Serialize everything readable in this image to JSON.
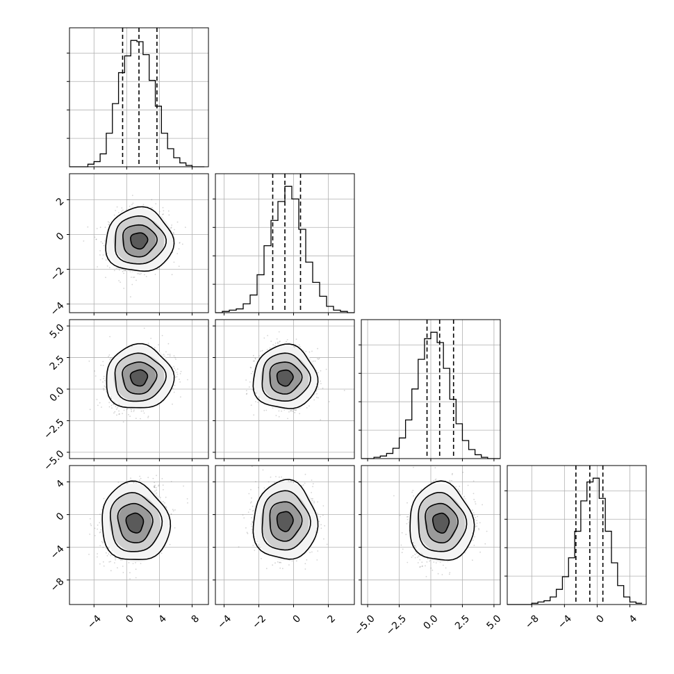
{
  "chart_data": {
    "type": "corner",
    "n_params": 4,
    "params": [
      {
        "range": [
          -7,
          10
        ],
        "ticks": [
          -4,
          0,
          4,
          8
        ],
        "tick_labels": [
          "−4",
          "0",
          "4",
          "8"
        ],
        "quantiles": [
          -0.5,
          1.5,
          3.7
        ],
        "hist": {
          "edges": [
            -7,
            -6.25,
            -5.5,
            -4.75,
            -4,
            -3.25,
            -2.5,
            -1.75,
            -1,
            -0.25,
            0.5,
            1.25,
            2,
            2.75,
            3.5,
            4.25,
            5,
            5.75,
            6.5,
            7.25,
            8,
            8.75,
            9.5
          ],
          "counts": [
            0,
            0,
            0,
            2,
            4,
            10,
            26,
            49,
            73,
            86,
            98,
            97,
            87,
            67,
            47,
            26,
            14,
            7,
            3,
            1,
            0,
            0
          ]
        }
      },
      {
        "range": [
          -4.5,
          3.5
        ],
        "ticks": [
          -4,
          -2,
          0,
          2
        ],
        "tick_labels": [
          "−4",
          "−2",
          "0",
          "2"
        ],
        "quantiles": [
          -1.2,
          -0.5,
          0.4
        ],
        "hist": {
          "edges": [
            -4.5,
            -4.1,
            -3.7,
            -3.3,
            -2.9,
            -2.5,
            -2.1,
            -1.7,
            -1.3,
            -0.9,
            -0.5,
            -0.1,
            0.3,
            0.7,
            1.1,
            1.5,
            1.9,
            2.3,
            2.7,
            3.1,
            3.5
          ],
          "counts": [
            0,
            1,
            2,
            3,
            7,
            14,
            30,
            53,
            73,
            88,
            100,
            90,
            66,
            40,
            24,
            13,
            5,
            2,
            1,
            0
          ]
        }
      },
      {
        "range": [
          -5.5,
          5.5
        ],
        "ticks": [
          -5,
          -2.5,
          0,
          2.5,
          5
        ],
        "tick_labels": [
          "−5.0",
          "−2.5",
          "0.0",
          "2.5",
          "5.0"
        ],
        "quantiles": [
          -0.3,
          0.7,
          1.8
        ],
        "hist": {
          "edges": [
            -5.5,
            -5,
            -4.5,
            -4,
            -3.5,
            -3,
            -2.5,
            -2,
            -1.5,
            -1,
            -0.5,
            0,
            0.5,
            1,
            1.5,
            2,
            2.5,
            3,
            3.5,
            4,
            4.5,
            5,
            5.5
          ],
          "counts": [
            0,
            0,
            1,
            2,
            4,
            8,
            16,
            30,
            54,
            77,
            93,
            98,
            90,
            70,
            46,
            27,
            14,
            7,
            3,
            1,
            0,
            0
          ]
        }
      },
      {
        "range": [
          -11,
          6
        ],
        "ticks": [
          -8,
          -4,
          0,
          4
        ],
        "tick_labels": [
          "−8",
          "−4",
          "0",
          "4"
        ],
        "quantiles": [
          -2.6,
          -0.9,
          0.7
        ],
        "hist": {
          "edges": [
            -11,
            -10.25,
            -9.5,
            -8.75,
            -8,
            -7.25,
            -6.5,
            -5.75,
            -5,
            -4.25,
            -3.5,
            -2.75,
            -2,
            -1.25,
            -0.5,
            0.25,
            1,
            1.75,
            2.5,
            3.25,
            4,
            4.75,
            5.5
          ],
          "counts": [
            0,
            0,
            0,
            0,
            1,
            2,
            3,
            6,
            12,
            22,
            37,
            58,
            82,
            97,
            100,
            84,
            58,
            33,
            15,
            6,
            2,
            1
          ]
        }
      }
    ],
    "pairs": [
      {
        "row": 1,
        "col": 0,
        "mean": [
          1.5,
          -0.35
        ],
        "sd": [
          1.8,
          0.8
        ],
        "rho": 0.05
      },
      {
        "row": 2,
        "col": 0,
        "mean": [
          1.5,
          0.9
        ],
        "sd": [
          1.8,
          1.1
        ],
        "rho": 0.25
      },
      {
        "row": 2,
        "col": 1,
        "mean": [
          -0.5,
          0.9
        ],
        "sd": [
          0.8,
          1.1
        ],
        "rho": 0.0
      },
      {
        "row": 3,
        "col": 0,
        "mean": [
          1.0,
          -1.0
        ],
        "sd": [
          1.8,
          2.1
        ],
        "rho": 0.3
      },
      {
        "row": 3,
        "col": 1,
        "mean": [
          -0.5,
          -0.8
        ],
        "sd": [
          0.8,
          2.1
        ],
        "rho": 0.0
      },
      {
        "row": 3,
        "col": 2,
        "mean": [
          0.8,
          -1.0
        ],
        "sd": [
          1.1,
          2.1
        ],
        "rho": 0.15
      }
    ],
    "contour_levels_sigma": [
      0.5,
      1.0,
      1.5,
      2.0
    ],
    "grid": true,
    "title": "",
    "colors": {
      "axes": "#000000",
      "grid": "#b0b0b0",
      "points": "#808080",
      "contour": "#000000"
    }
  }
}
